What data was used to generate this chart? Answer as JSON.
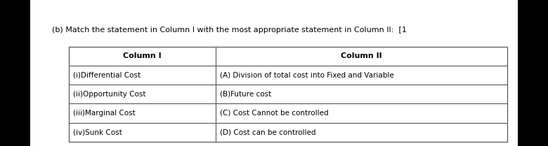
{
  "title": "(b) Match the statement in Column I with the most appropriate statement in Column II:  [1",
  "title_fontsize": 8,
  "col1_header": "Column I",
  "col2_header": "Column II",
  "col1_rows": [
    "(i)Differential Cost",
    "(ii)Opportunity Cost",
    "(iii)Marginal Cost",
    "(iv)Sunk Cost"
  ],
  "col2_rows": [
    "(A) Division of total cost into Fixed and Variable",
    "(B)Future cost",
    "(C) Cost Cannot be controlled",
    "(D) Cost can be controlled"
  ],
  "bg_color": "#ffffff",
  "left_bar_color": "#000000",
  "right_bar_color": "#000000",
  "table_bg": "#ffffff",
  "border_color": "#555555",
  "text_color": "#000000",
  "font_size": 7.5,
  "header_font_size": 8,
  "left_bar_width": 0.055,
  "right_bar_width": 0.055
}
